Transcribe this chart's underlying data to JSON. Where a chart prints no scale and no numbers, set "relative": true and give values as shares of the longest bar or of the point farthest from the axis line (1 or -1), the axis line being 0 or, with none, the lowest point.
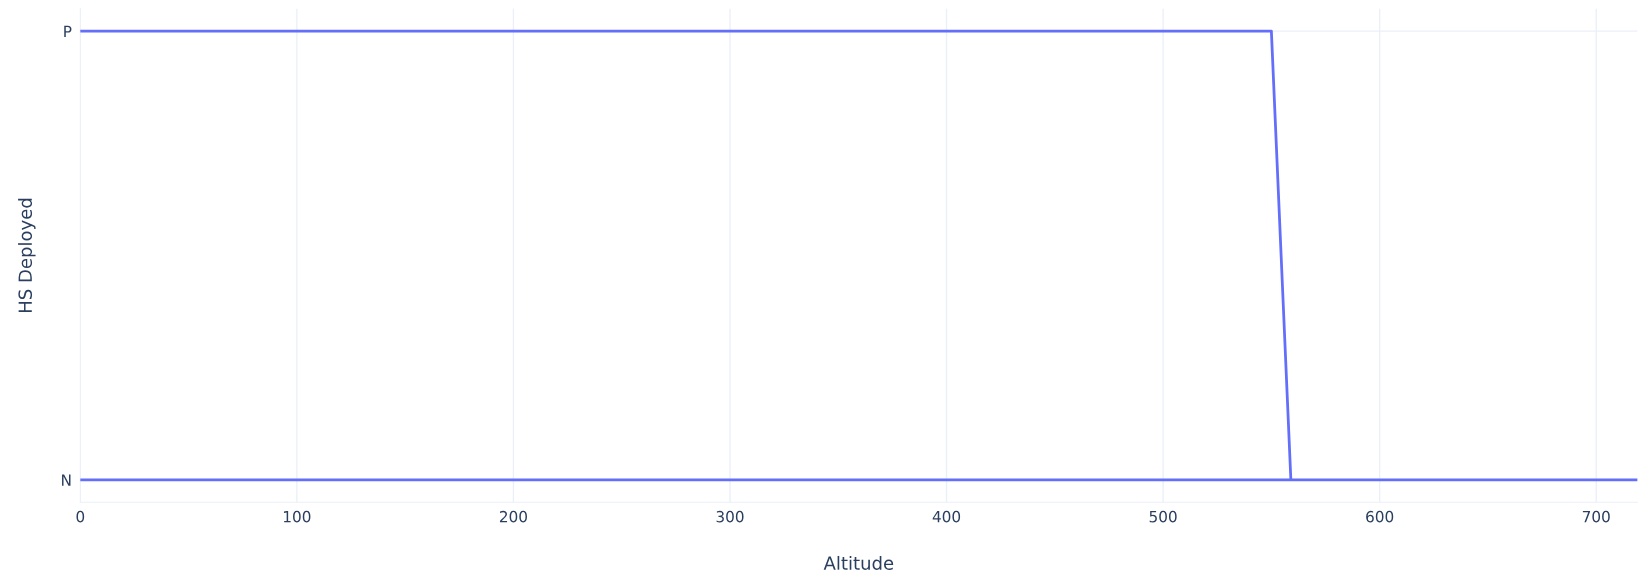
{
  "chart_data": {
    "type": "line",
    "xlabel": "Altitude",
    "ylabel": "HS Deployed",
    "x": [
      0,
      719,
      559,
      550,
      0
    ],
    "series": [
      {
        "color": "#636efa",
        "values": [
          0,
          0,
          0,
          1,
          1
        ]
      }
    ],
    "xlim": [
      0,
      719
    ],
    "xticks": [
      0,
      100,
      200,
      300,
      400,
      500,
      600,
      700
    ],
    "relative": true,
    "annotations": [
      {
        "text": "N",
        "x": 0,
        "y": 0
      },
      {
        "text": "P",
        "x": 0,
        "y": 1
      }
    ],
    "grid": true,
    "marker": "none",
    "line_style": "solid"
  }
}
